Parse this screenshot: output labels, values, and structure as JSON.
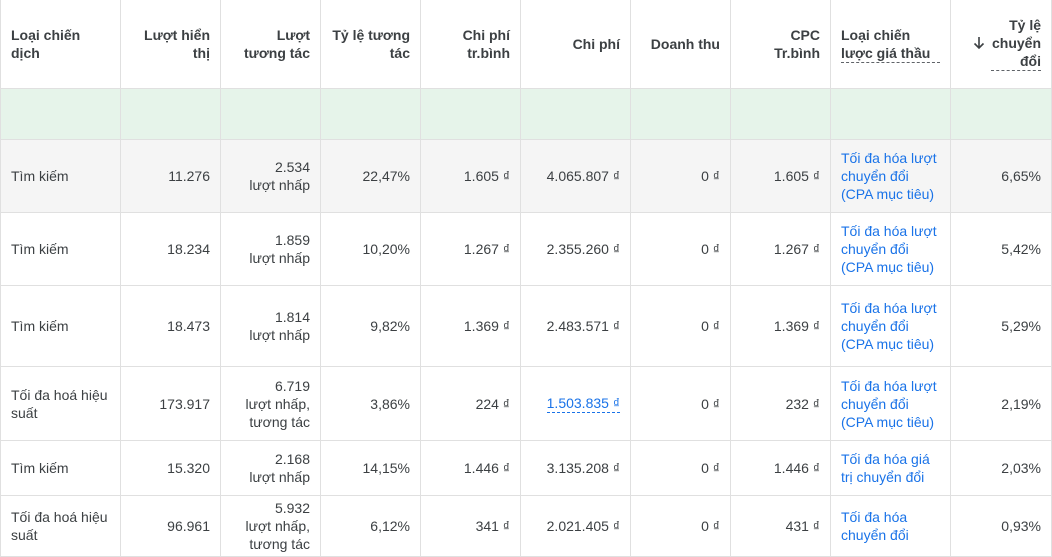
{
  "headers": {
    "campaign_type": "Loại chiến dịch",
    "impressions": "Lượt hiển thị",
    "interactions": "Lượt tương tác",
    "interaction_rate": "Tỷ lệ tương tác",
    "avg_cost": "Chi phí tr.bình",
    "cost": "Chi phí",
    "revenue": "Doanh thu",
    "avg_cpc": "CPC Tr.bình",
    "bid_strategy_type": "Loại chiến lược giá thầu",
    "conv_rate": "Tỷ lệ chuyển đổi"
  },
  "rows": [
    {
      "campaign_type": "Tìm kiếm",
      "impressions": "11.276",
      "interactions": "2.534\nlượt nhấp",
      "interaction_rate": "22,47%",
      "avg_cost": "1.605 ₫",
      "cost": "4.065.807 ₫",
      "revenue": "0 ₫",
      "avg_cpc": "1.605 ₫",
      "bid_strategy": "Tối đa hóa lượt chuyển đổi (CPA mục tiêu)",
      "conv_rate": "6,65%"
    },
    {
      "campaign_type": "Tìm kiếm",
      "impressions": "18.234",
      "interactions": "1.859\nlượt nhấp",
      "interaction_rate": "10,20%",
      "avg_cost": "1.267 ₫",
      "cost": "2.355.260 ₫",
      "revenue": "0 ₫",
      "avg_cpc": "1.267 ₫",
      "bid_strategy": "Tối đa hóa lượt chuyển đổi (CPA mục tiêu)",
      "conv_rate": "5,42%"
    },
    {
      "campaign_type": "Tìm kiếm",
      "impressions": "18.473",
      "interactions": "1.814\nlượt nhấp",
      "interaction_rate": "9,82%",
      "avg_cost": "1.369 ₫",
      "cost": "2.483.571 ₫",
      "revenue": "0 ₫",
      "avg_cpc": "1.369 ₫",
      "bid_strategy": "Tối đa hóa lượt chuyển đổi (CPA mục tiêu)",
      "conv_rate": "5,29%"
    },
    {
      "campaign_type": "Tối đa hoá hiệu suất",
      "impressions": "173.917",
      "interactions": "6.719\nlượt nhấp,\ntương tác",
      "interaction_rate": "3,86%",
      "avg_cost": "224 ₫",
      "cost": "1.503.835 ₫",
      "revenue": "0 ₫",
      "avg_cpc": "232 ₫",
      "bid_strategy": "Tối đa hóa lượt chuyển đổi (CPA mục tiêu)",
      "conv_rate": "2,19%"
    },
    {
      "campaign_type": "Tìm kiếm",
      "impressions": "15.320",
      "interactions": "2.168\nlượt nhấp",
      "interaction_rate": "14,15%",
      "avg_cost": "1.446 ₫",
      "cost": "3.135.208 ₫",
      "revenue": "0 ₫",
      "avg_cpc": "1.446 ₫",
      "bid_strategy": "Tối đa hóa giá trị chuyển đổi",
      "conv_rate": "2,03%"
    },
    {
      "campaign_type": "Tối đa hoá hiệu suất",
      "impressions": "96.961",
      "interactions": "5.932\nlượt nhấp,\ntương tác",
      "interaction_rate": "6,12%",
      "avg_cost": "341 ₫",
      "cost": "2.021.405 ₫",
      "revenue": "0 ₫",
      "avg_cpc": "431 ₫",
      "bid_strategy": "Tối đa hóa chuyển đổi",
      "conv_rate": "0,93%"
    }
  ],
  "colors": {
    "header_bg": "#ffffff",
    "summary_bg": "#e6f4ea",
    "row_highlight_bg": "#f5f5f5",
    "link": "#1a73e8",
    "border": "#e0e0e0"
  },
  "icons": {
    "sort": "arrow-down-icon"
  }
}
